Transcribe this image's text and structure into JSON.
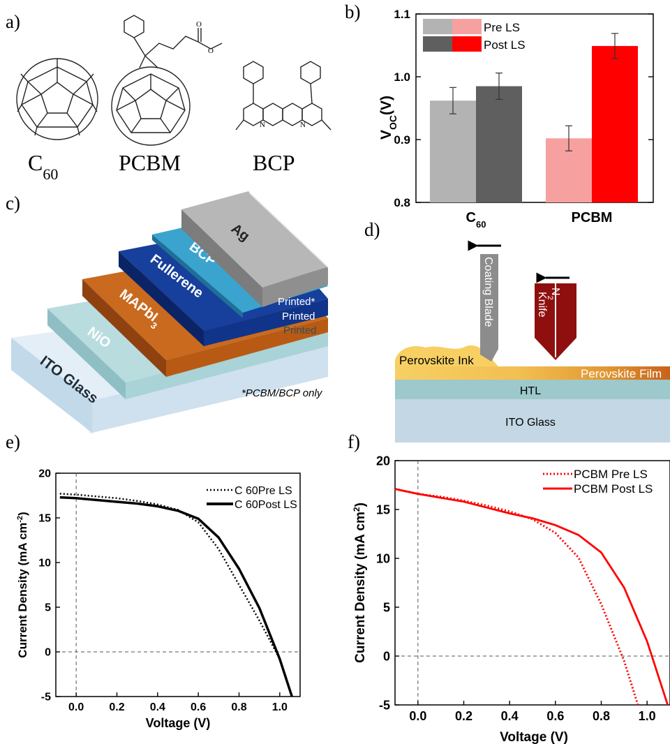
{
  "panel_labels": {
    "a": "a)",
    "b": "b)",
    "c": "c)",
    "d": "d)",
    "e": "e)",
    "f": "f)"
  },
  "panel_a": {
    "molecules": [
      "C60",
      "PCBM",
      "BCP"
    ],
    "c60_label_main": "C",
    "c60_label_sub": "60",
    "pcbm_label": "PCBM",
    "bcp_label": "BCP",
    "atom_N": "N",
    "atom_O": "O"
  },
  "panel_c": {
    "layers": [
      "ITO Glass",
      "NiO",
      "MAPbI3",
      "Fullerene",
      "BCP",
      "Ag"
    ],
    "mapbi_main": "MAPbI",
    "mapbi_sub": "3",
    "process_labels": [
      "Printed*",
      "Printed",
      "Printed"
    ],
    "footnote": "*PCBM/BCP only",
    "colors": {
      "ito": "#cfe0ee",
      "nio": "#a9d3d6",
      "mapbi": "#b85a14",
      "fullerene": "#10348a",
      "bcp": "#2f93bf",
      "ag": "#9b9b9b"
    }
  },
  "panel_d": {
    "blade_label": "Coating  Blade",
    "knife_label": "Knife",
    "n2_main": "N",
    "n2_sub": "2",
    "ink_label": "Perovskite Ink",
    "film_label": "Perovskite Film",
    "htl_label": "HTL",
    "glass_label": "ITO Glass"
  },
  "chart_data": [
    {
      "type": "bar",
      "panel": "b",
      "categories": [
        "C60",
        "PCBM"
      ],
      "category_display": [
        {
          "main": "C",
          "sub": "60"
        },
        {
          "main": "PCBM",
          "sub": ""
        }
      ],
      "ylabel_main": "V",
      "ylabel_sub": "OC",
      "ylabel_tail": "(V)",
      "ylim": [
        0.8,
        1.1
      ],
      "yticks": [
        0.8,
        0.9,
        1.0,
        1.1
      ],
      "ytick_labels": [
        "0.8",
        "0.9",
        "1.0",
        "1.1"
      ],
      "legend_placement": "top-left",
      "legend_labels": [
        "Pre LS",
        "Post LS"
      ],
      "bars": [
        {
          "category": "C60",
          "group": "Pre LS",
          "value": 0.962,
          "error": 0.021,
          "color": "#b3b3b3"
        },
        {
          "category": "C60",
          "group": "Post LS",
          "value": 0.985,
          "error": 0.021,
          "color": "#5f5f5f"
        },
        {
          "category": "PCBM",
          "group": "Pre LS",
          "value": 0.902,
          "error": 0.02,
          "color": "#f7a0a0"
        },
        {
          "category": "PCBM",
          "group": "Post LS",
          "value": 1.049,
          "error": 0.02,
          "color": "#ff0000"
        }
      ]
    },
    {
      "type": "line",
      "panel": "e",
      "xlabel": "Voltage (V)",
      "ylabel": "Current Density (mA cm",
      "ylabel_sup": "-2",
      "ylabel_close": ")",
      "xlim": [
        -0.1,
        1.1
      ],
      "ylim": [
        -5,
        20
      ],
      "xticks": [
        0.0,
        0.2,
        0.4,
        0.6,
        0.8,
        1.0
      ],
      "xtick_labels": [
        "0.0",
        "0.2",
        "0.4",
        "0.6",
        "0.8",
        "1.0"
      ],
      "yticks": [
        -5,
        0,
        5,
        10,
        15,
        20
      ],
      "ytick_labels": [
        "-5",
        "0",
        "5",
        "10",
        "15",
        "20"
      ],
      "legend_placement": "top-right",
      "series": [
        {
          "name": "C 60Pre LS",
          "style": "dotted",
          "color": "#000000",
          "x": [
            -0.08,
            0.0,
            0.1,
            0.2,
            0.3,
            0.4,
            0.5,
            0.6,
            0.7,
            0.8,
            0.9,
            1.0,
            1.06
          ],
          "y": [
            17.7,
            17.6,
            17.4,
            17.2,
            16.9,
            16.5,
            15.9,
            14.5,
            11.5,
            7.5,
            3.5,
            -0.8,
            -5.0
          ]
        },
        {
          "name": "C 60Post LS",
          "style": "solid",
          "color": "#000000",
          "x": [
            -0.08,
            0.0,
            0.1,
            0.2,
            0.3,
            0.4,
            0.5,
            0.6,
            0.7,
            0.8,
            0.9,
            1.0,
            1.06
          ],
          "y": [
            17.3,
            17.2,
            17.0,
            16.8,
            16.6,
            16.3,
            15.8,
            14.9,
            12.8,
            9.3,
            4.9,
            -0.8,
            -5.0
          ]
        }
      ]
    },
    {
      "type": "line",
      "panel": "f",
      "xlabel": "Voltage (V)",
      "ylabel": "Current Density (mA cm",
      "ylabel_sup": "2",
      "ylabel_close": ")",
      "xlim": [
        -0.1,
        1.1
      ],
      "ylim": [
        -5,
        20
      ],
      "xticks": [
        0.0,
        0.2,
        0.4,
        0.6,
        0.8,
        1.0
      ],
      "xtick_labels": [
        "0.0",
        "0.2",
        "0.4",
        "0.6",
        "0.8",
        "1.0"
      ],
      "yticks": [
        -5,
        0,
        5,
        10,
        15,
        20
      ],
      "ytick_labels": [
        "-5",
        "0",
        "5",
        "10",
        "15",
        "20"
      ],
      "legend_placement": "top-right",
      "series": [
        {
          "name": "PCBM Pre LS",
          "style": "dotted",
          "color": "#ff0000",
          "x": [
            -0.1,
            0.0,
            0.1,
            0.2,
            0.3,
            0.4,
            0.5,
            0.6,
            0.7,
            0.8,
            0.9,
            0.96
          ],
          "y": [
            17.1,
            16.6,
            16.3,
            15.9,
            15.4,
            14.8,
            14.0,
            12.6,
            10.1,
            5.3,
            -0.5,
            -5.0
          ]
        },
        {
          "name": "PCBM Post LS",
          "style": "solid",
          "color": "#ff0000",
          "x": [
            -0.1,
            0.0,
            0.1,
            0.2,
            0.3,
            0.4,
            0.5,
            0.6,
            0.7,
            0.8,
            0.9,
            1.0,
            1.09
          ],
          "y": [
            17.1,
            16.6,
            16.2,
            15.8,
            15.2,
            14.6,
            14.1,
            13.4,
            12.4,
            10.6,
            7.0,
            1.5,
            -5.0
          ]
        }
      ]
    }
  ]
}
